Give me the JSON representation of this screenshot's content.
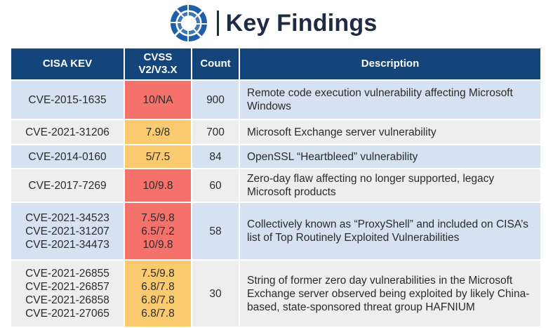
{
  "header": {
    "title": "Key Findings",
    "logo_icon": "radial-segmented-circle-logo",
    "brand_color": "#1f5fa8"
  },
  "table": {
    "columns": [
      "CISA KEV",
      "CVSS\nV2/V3.X",
      "Count",
      "Description"
    ],
    "header_color": "#13457a",
    "rows": [
      {
        "cves": [
          "CVE-2015-1635"
        ],
        "cvss": [
          "10/NA"
        ],
        "cvss_color": "red",
        "count": "900",
        "description": "Remote code execution vulnerability affecting Microsoft Windows"
      },
      {
        "cves": [
          "CVE-2021-31206"
        ],
        "cvss": [
          "7.9/8"
        ],
        "cvss_color": "yellow",
        "count": "700",
        "description": "Microsoft Exchange server vulnerability"
      },
      {
        "cves": [
          "CVE-2014-0160"
        ],
        "cvss": [
          "5/7.5"
        ],
        "cvss_color": "yellow",
        "count": "84",
        "description": "OpenSSL “Heartbleed” vulnerability"
      },
      {
        "cves": [
          "CVE-2017-7269"
        ],
        "cvss": [
          "10/9.8"
        ],
        "cvss_color": "red",
        "count": "60",
        "description": "Zero-day flaw affecting no longer supported, legacy Microsoft products"
      },
      {
        "cves": [
          "CVE-2021-34523",
          "CVE-2021-31207",
          "CVE-2021-34473"
        ],
        "cvss": [
          "7.5/9.8",
          "6.5/7.2",
          "10/9.8"
        ],
        "cvss_color": "red",
        "count": "58",
        "description": "Collectively known as “ProxyShell” and included on CISA’s list of Top Routinely Exploited Vulnerabilities"
      },
      {
        "cves": [
          "CVE-2021-26855",
          "CVE-2021-26857",
          "CVE-2021-26858",
          "CVE-2021-27065"
        ],
        "cvss": [
          "7.5/9.8",
          "6.8/7.8",
          "6.8/7.8",
          "6.8/7.8"
        ],
        "cvss_color": "yellow",
        "count": "30",
        "description": "String of former zero day vulnerabilities in the Microsoft Exchange server observed being exploited by likely China-based, state-sponsored threat group HAFNIUM"
      }
    ],
    "colors": {
      "red": "#f4726b",
      "yellow": "#f9ca6e",
      "row_blue": "#d6e2f1",
      "row_gray": "#eeeeee"
    }
  }
}
